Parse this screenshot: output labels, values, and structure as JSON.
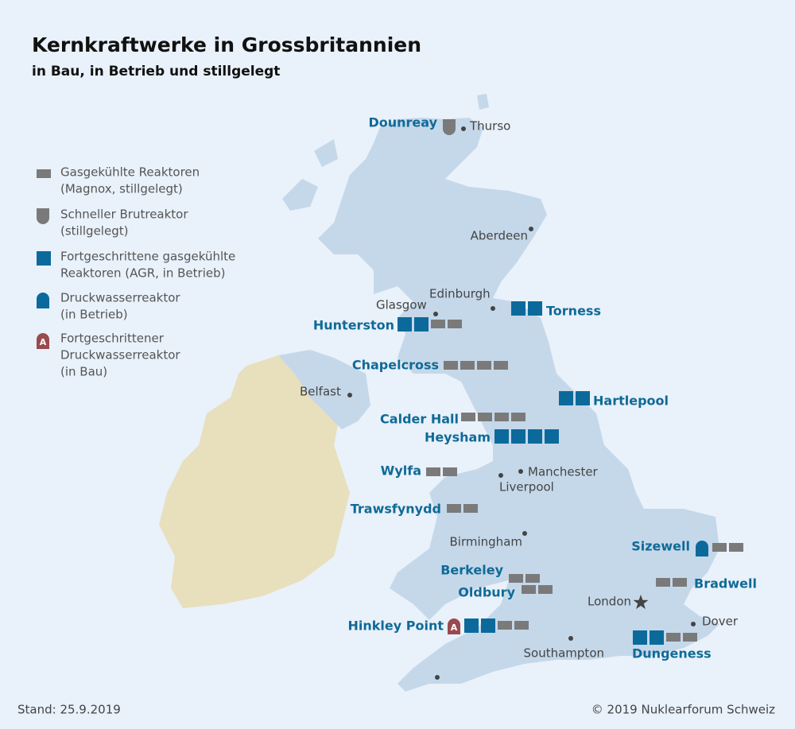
{
  "header": {
    "title": "Kernkraftwerke in Grossbritannien",
    "subtitle": "in Bau, in Betrieb und stillgelegt"
  },
  "legend": [
    {
      "lines": [
        "Gasgekühlte Reaktoren",
        "(Magnox, stillgelegt)"
      ]
    },
    {
      "lines": [
        "Schneller Brutreaktor",
        "(stillgelegt)"
      ]
    },
    {
      "lines": [
        "Fortgeschrittene gasgekühlte",
        "Reaktoren (AGR, in Betrieb)"
      ]
    },
    {
      "lines": [
        "Druckwasserreaktor",
        "(in Betrieb)"
      ]
    },
    {
      "lines": [
        "Fortgeschrittener",
        "Druckwasserreaktor",
        "(in Bau)"
      ]
    }
  ],
  "plants": [
    {
      "name": "Dounreay"
    },
    {
      "name": "Hunterston"
    },
    {
      "name": "Torness"
    },
    {
      "name": "Chapelcross"
    },
    {
      "name": "Hartlepool"
    },
    {
      "name": "Calder Hall"
    },
    {
      "name": "Heysham"
    },
    {
      "name": "Wylfa"
    },
    {
      "name": "Trawsfynydd"
    },
    {
      "name": "Sizewell"
    },
    {
      "name": "Berkeley"
    },
    {
      "name": "Bradwell"
    },
    {
      "name": "Oldbury"
    },
    {
      "name": "Hinkley Point"
    },
    {
      "name": "Dungeness"
    }
  ],
  "cities": [
    {
      "name": "Thurso"
    },
    {
      "name": "Aberdeen"
    },
    {
      "name": "Edinburgh"
    },
    {
      "name": "Glasgow"
    },
    {
      "name": "Belfast"
    },
    {
      "name": "Manchester"
    },
    {
      "name": "Liverpool"
    },
    {
      "name": "Birmingham"
    },
    {
      "name": "London"
    },
    {
      "name": "Dover"
    },
    {
      "name": "Southampton"
    }
  ],
  "footer": {
    "date": "Stand: 25.9.2019",
    "credit": "© 2019 Nuklearforum Schweiz"
  }
}
